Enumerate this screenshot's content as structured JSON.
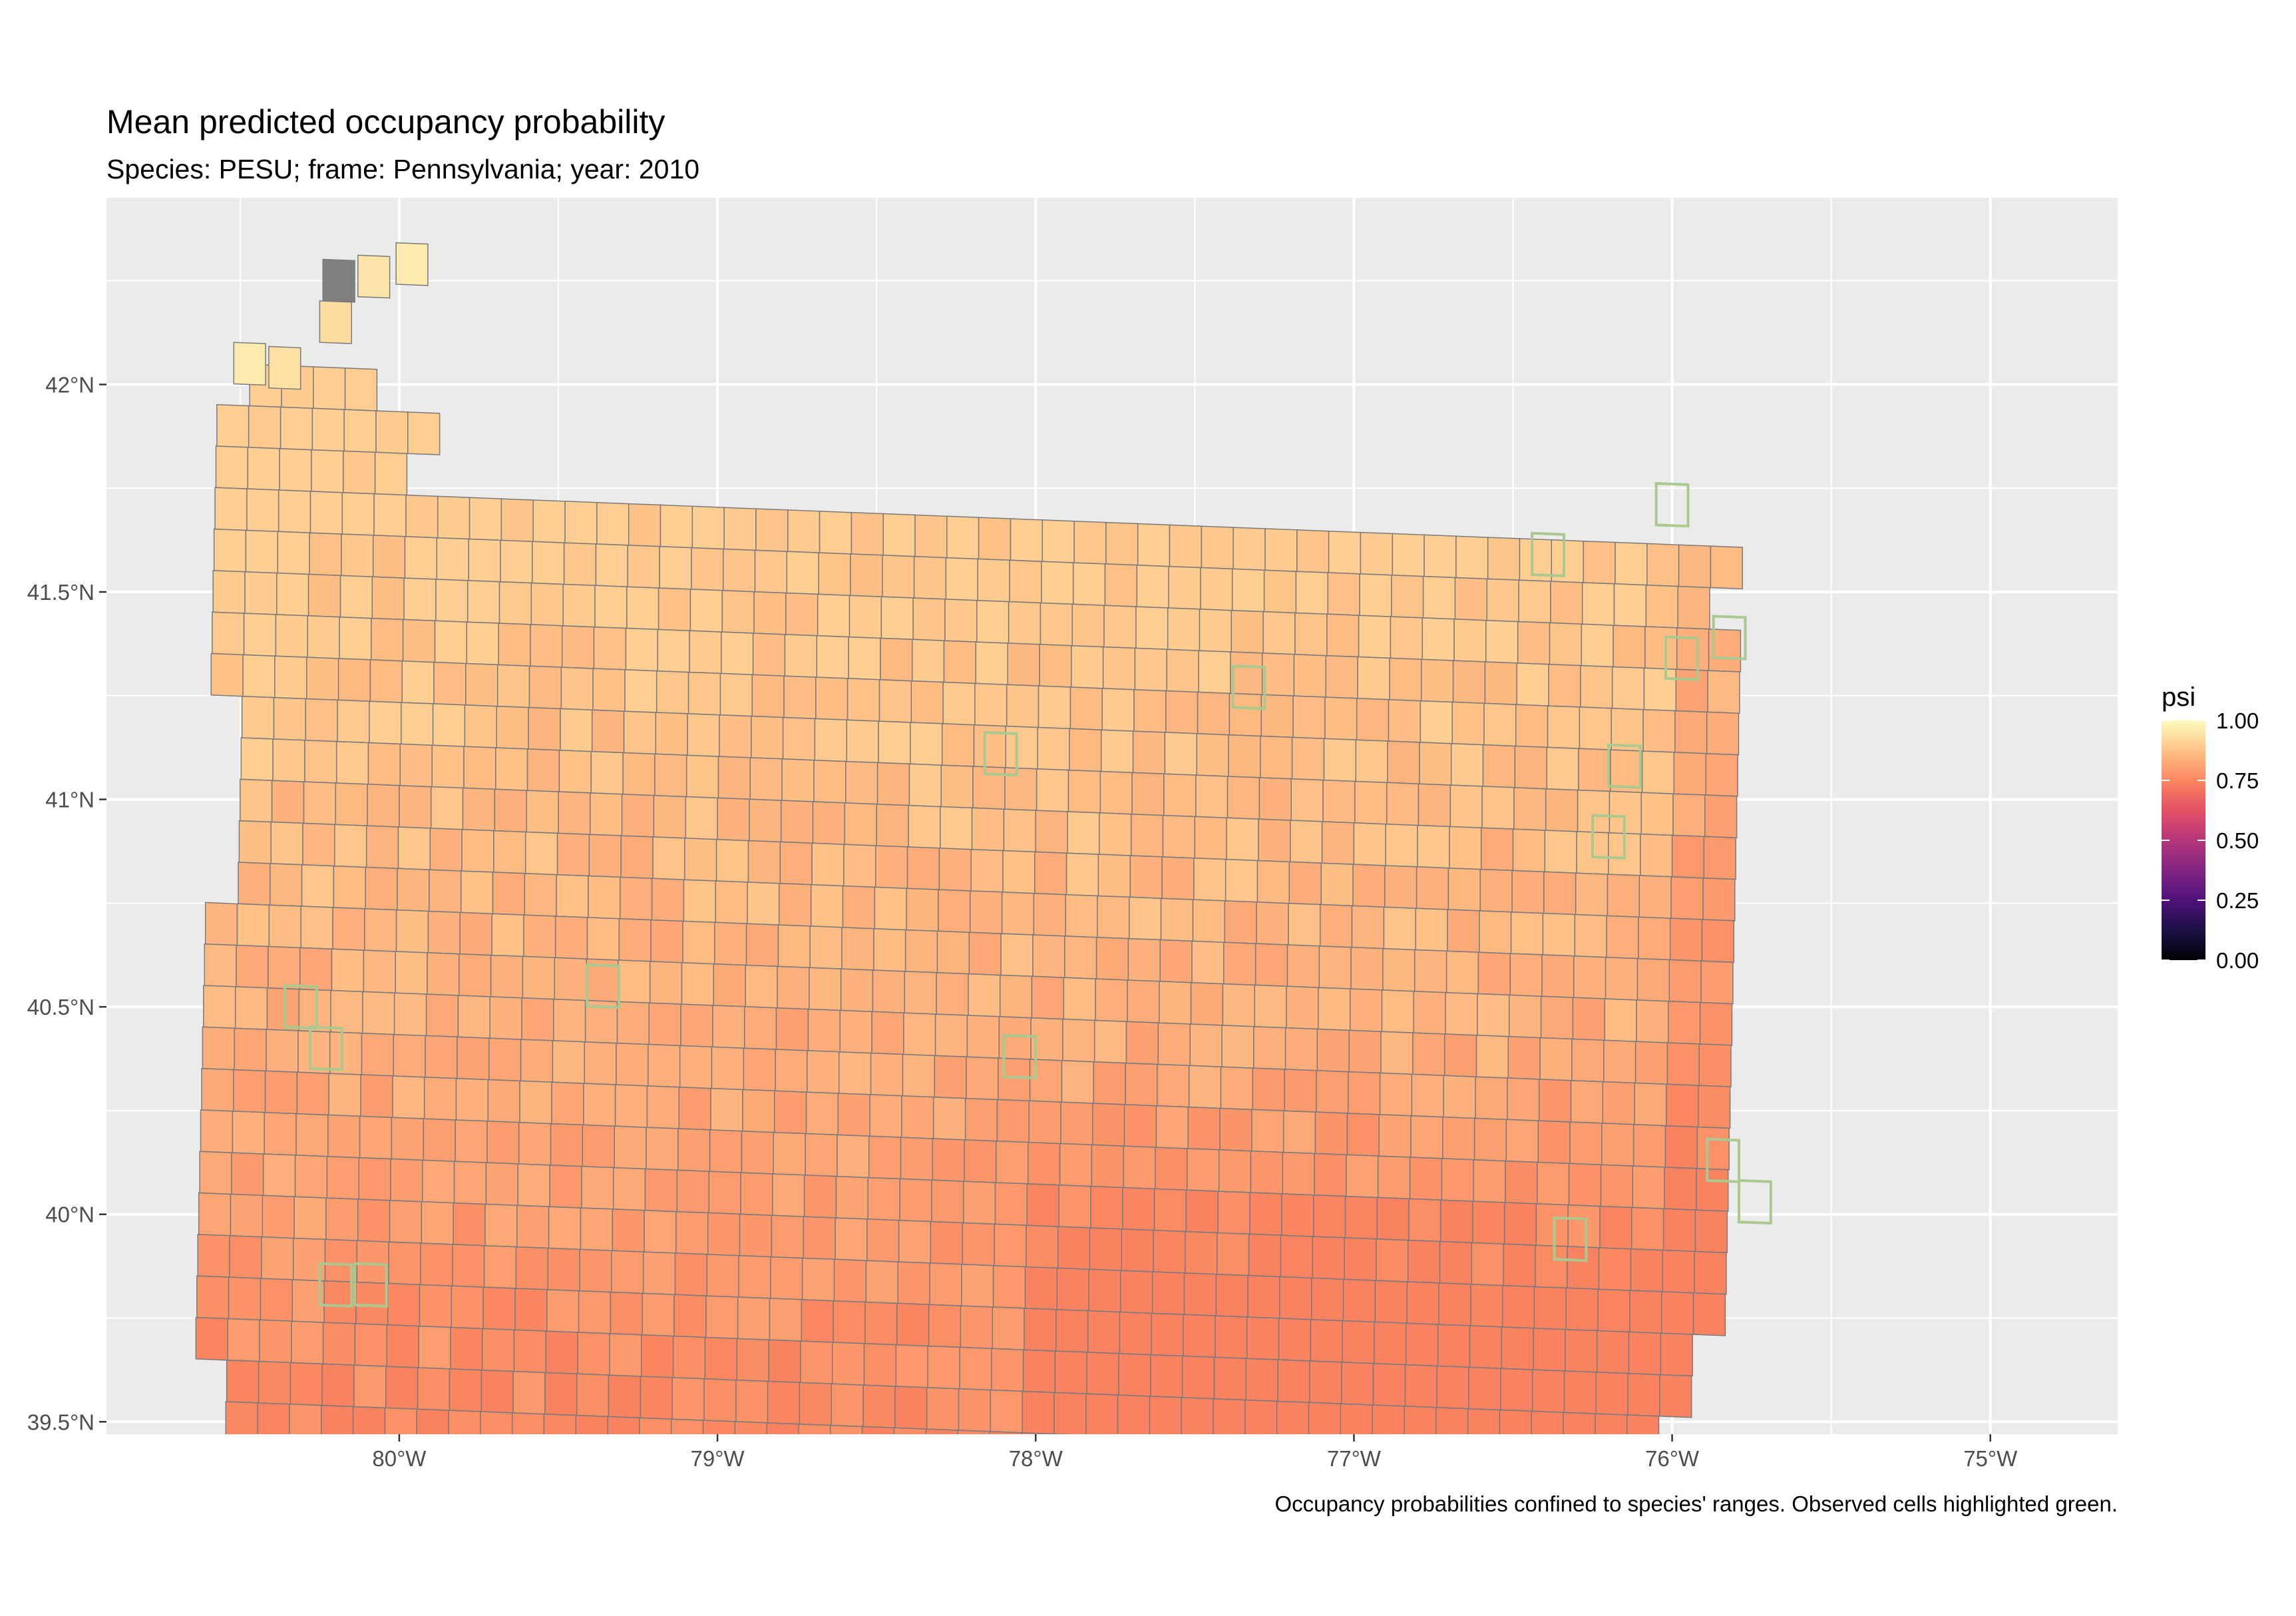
{
  "chart_data": {
    "type": "heatmap",
    "title": "Mean predicted occupancy probability",
    "subtitle": "Species: PESU; frame: Pennsylvania; year: 2010",
    "caption": "Occupancy probabilities confined to species' ranges. Observed cells highlighted green.",
    "x_ticks": [
      "80°W",
      "79°W",
      "78°W",
      "77°W",
      "76°W",
      "75°W"
    ],
    "y_ticks": [
      "42°N",
      "41.5°N",
      "41°N",
      "40.5°N",
      "40°N",
      "39.5°N"
    ],
    "x_tick_values": [
      -80,
      -79,
      -78,
      -77,
      -76,
      -75
    ],
    "y_tick_values": [
      42,
      41.5,
      41,
      40.5,
      40,
      39.5
    ],
    "xlim": [
      -80.92,
      -74.6
    ],
    "ylim": [
      39.47,
      42.45
    ],
    "grid": true,
    "legend": {
      "title": "psi",
      "labels": [
        "1.00",
        "0.75",
        "0.50",
        "0.25",
        "0.00"
      ],
      "values": [
        1.0,
        0.75,
        0.5,
        0.25,
        0.0
      ],
      "colorscale": "magma",
      "position": "right"
    },
    "colors": {
      "panel_background": "#ebebeb",
      "grid": "#ffffff",
      "cell_border": "#7a7a7a",
      "observed_border": "#a9c98f",
      "missing": "#7f7f7f"
    },
    "cell_grid": {
      "rows": 27,
      "cols": 48,
      "lon0": -80.52,
      "lat0": 42.0,
      "dlon": 0.1,
      "dlat": 0.1,
      "row_shift_lon": -0.003,
      "col_shift_lat": -0.003
    },
    "row_extents": [
      [
        1,
        4
      ],
      [
        0,
        6
      ],
      [
        0,
        5
      ],
      [
        0,
        47
      ],
      [
        0,
        46
      ],
      [
        0,
        47
      ],
      [
        0,
        47
      ],
      [
        0,
        47
      ],
      [
        1,
        47
      ],
      [
        1,
        47
      ],
      [
        1,
        47
      ],
      [
        1,
        47
      ],
      [
        1,
        47
      ],
      [
        0,
        47
      ],
      [
        0,
        47
      ],
      [
        0,
        47
      ],
      [
        0,
        47
      ],
      [
        0,
        47
      ],
      [
        0,
        47
      ],
      [
        0,
        47
      ],
      [
        0,
        47
      ],
      [
        0,
        47
      ],
      [
        0,
        46
      ],
      [
        0,
        46
      ],
      [
        1,
        45
      ],
      [
        1,
        44
      ],
      [
        2,
        44
      ]
    ],
    "value_rule": {
      "base": 0.86,
      "north_gradient": 0.06,
      "south_east_gradient": -0.1,
      "noise": 0.03
    },
    "special_cells": [
      {
        "lon": -80.19,
        "lat": 42.25,
        "psi": null
      },
      {
        "lon": -80.08,
        "lat": 42.26,
        "psi": 0.95
      },
      {
        "lon": -79.96,
        "lat": 42.29,
        "psi": 0.96
      },
      {
        "lon": -80.2,
        "lat": 42.15,
        "psi": 0.93
      },
      {
        "lon": -80.47,
        "lat": 42.05,
        "psi": 0.96
      },
      {
        "lon": -80.36,
        "lat": 42.04,
        "psi": 0.94
      }
    ],
    "observed_cells": [
      {
        "lon": -76.0,
        "lat": 41.71
      },
      {
        "lon": -76.39,
        "lat": 41.59
      },
      {
        "lon": -75.82,
        "lat": 41.39
      },
      {
        "lon": -75.97,
        "lat": 41.34
      },
      {
        "lon": -77.33,
        "lat": 41.27
      },
      {
        "lon": -78.11,
        "lat": 41.11
      },
      {
        "lon": -76.15,
        "lat": 41.08
      },
      {
        "lon": -76.2,
        "lat": 40.91
      },
      {
        "lon": -80.31,
        "lat": 40.5
      },
      {
        "lon": -79.36,
        "lat": 40.55
      },
      {
        "lon": -80.23,
        "lat": 40.4
      },
      {
        "lon": -78.05,
        "lat": 40.38
      },
      {
        "lon": -75.84,
        "lat": 40.13
      },
      {
        "lon": -75.74,
        "lat": 40.03
      },
      {
        "lon": -76.32,
        "lat": 39.94
      },
      {
        "lon": -80.2,
        "lat": 39.83
      },
      {
        "lon": -80.09,
        "lat": 39.83
      }
    ]
  }
}
